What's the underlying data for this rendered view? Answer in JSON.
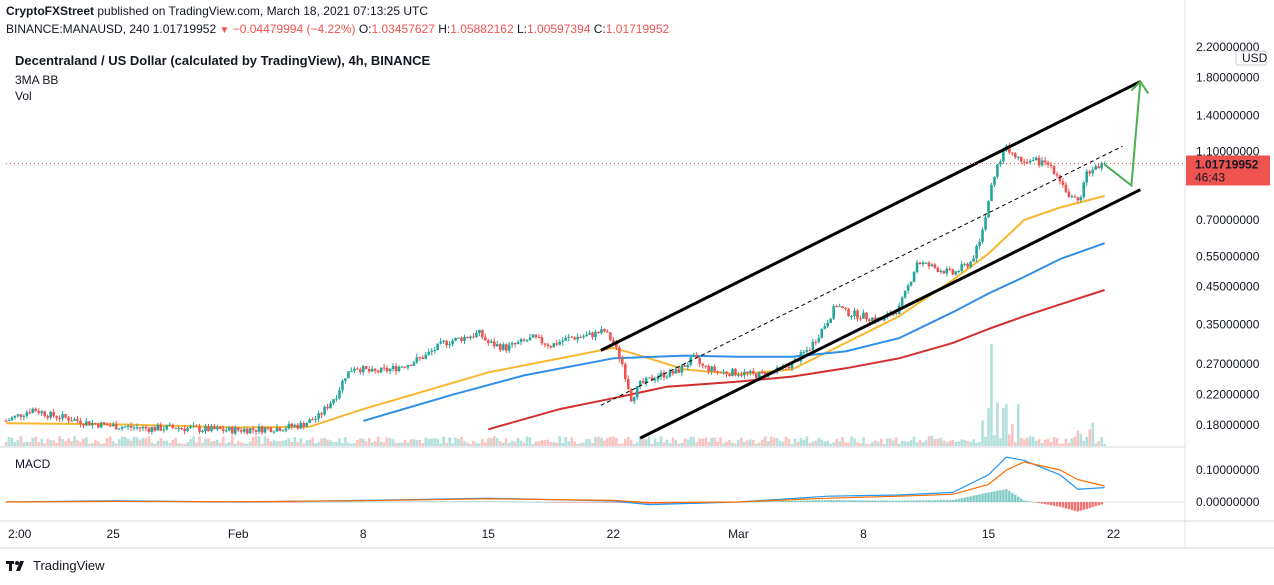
{
  "header": {
    "author": "CryptoFXStreet",
    "published": "published on TradingView.com, March 18, 2021 07:13:25 UTC",
    "symbol": "BINANCE:MANAUSD, 240",
    "last": "1.01719952",
    "change": "−0.04479994 (−4.22%)",
    "o_label": "O:",
    "o_value": "1.03457627",
    "h_label": "H:",
    "h_value": "1.05882162",
    "l_label": "L:",
    "l_value": "1.00597394",
    "c_label": "C:",
    "c_value": "1.01719952"
  },
  "legend": {
    "title": "Decentraland / US Dollar (calculated by TradingView), 4h, BINANCE",
    "indicator1": "3MA BB",
    "indicator2": "Vol",
    "macd": "MACD"
  },
  "price_tag": {
    "value": "1.01719952",
    "countdown": "46:43",
    "currency": "USD"
  },
  "footer": {
    "brand": "TradingView"
  },
  "colors": {
    "up": "#26a69a",
    "down": "#ef5350",
    "ma_fast": "#f7b731",
    "ma_mid": "#2f8fe6",
    "ma_slow": "#d32f2f",
    "arrow": "#4caf50",
    "macd": "#2196f3",
    "signal": "#ff6d00"
  },
  "chart_data": {
    "type": "candlestick",
    "title": "Decentraland / US Dollar (calculated by TradingView), 4h, BINANCE",
    "y_scale": "log",
    "y_ticks": [
      2.2,
      1.8,
      1.4,
      1.1,
      0.7,
      0.55,
      0.45,
      0.35,
      0.27,
      0.22,
      0.18
    ],
    "y_tick_labels": [
      "2.20000000",
      "1.80000000",
      "1.40000000",
      "1.10000000",
      "0.70000000",
      "0.55000000",
      "0.45000000",
      "0.35000000",
      "0.27000000",
      "0.22000000",
      "0.18000000"
    ],
    "x_tick_labels": [
      "2:00",
      "25",
      "Feb",
      "8",
      "15",
      "22",
      "Mar",
      "8",
      "15",
      "22"
    ],
    "x_tick_days": [
      19.08,
      25,
      32,
      39,
      46,
      53,
      60,
      67,
      74,
      81
    ],
    "x_range_days": [
      19,
      85
    ],
    "last_price": 1.01719952,
    "price_path": [
      [
        19.0,
        0.185
      ],
      [
        20.5,
        0.2
      ],
      [
        21.5,
        0.192
      ],
      [
        22.5,
        0.188
      ],
      [
        23.5,
        0.183
      ],
      [
        24.5,
        0.18
      ],
      [
        25.5,
        0.178
      ],
      [
        27.0,
        0.176
      ],
      [
        28.5,
        0.177
      ],
      [
        30.0,
        0.175
      ],
      [
        31.5,
        0.174
      ],
      [
        33.0,
        0.175
      ],
      [
        34.5,
        0.177
      ],
      [
        35.5,
        0.18
      ],
      [
        36.5,
        0.19
      ],
      [
        37.5,
        0.22
      ],
      [
        38.0,
        0.25
      ],
      [
        38.5,
        0.265
      ],
      [
        39.5,
        0.255
      ],
      [
        40.5,
        0.26
      ],
      [
        41.5,
        0.27
      ],
      [
        42.5,
        0.285
      ],
      [
        43.5,
        0.31
      ],
      [
        44.5,
        0.32
      ],
      [
        45.5,
        0.33
      ],
      [
        46.0,
        0.31
      ],
      [
        47.0,
        0.3
      ],
      [
        48.5,
        0.32
      ],
      [
        49.5,
        0.305
      ],
      [
        50.5,
        0.32
      ],
      [
        51.5,
        0.325
      ],
      [
        52.5,
        0.335
      ],
      [
        53.0,
        0.31
      ],
      [
        53.5,
        0.27
      ],
      [
        54.0,
        0.215
      ],
      [
        54.5,
        0.235
      ],
      [
        55.5,
        0.25
      ],
      [
        56.5,
        0.255
      ],
      [
        57.5,
        0.28
      ],
      [
        58.0,
        0.265
      ],
      [
        59.0,
        0.255
      ],
      [
        60.0,
        0.255
      ],
      [
        61.0,
        0.25
      ],
      [
        62.0,
        0.255
      ],
      [
        63.0,
        0.27
      ],
      [
        64.0,
        0.3
      ],
      [
        65.0,
        0.36
      ],
      [
        65.5,
        0.4
      ],
      [
        66.0,
        0.38
      ],
      [
        67.0,
        0.37
      ],
      [
        68.0,
        0.36
      ],
      [
        69.0,
        0.39
      ],
      [
        69.5,
        0.45
      ],
      [
        70.0,
        0.53
      ],
      [
        71.0,
        0.51
      ],
      [
        72.0,
        0.49
      ],
      [
        73.0,
        0.53
      ],
      [
        73.5,
        0.6
      ],
      [
        74.0,
        0.8
      ],
      [
        74.5,
        1.0
      ],
      [
        75.0,
        1.15
      ],
      [
        75.5,
        1.06
      ],
      [
        76.5,
        1.04
      ],
      [
        77.5,
        1.0
      ],
      [
        78.0,
        0.92
      ],
      [
        78.5,
        0.82
      ],
      [
        79.0,
        0.78
      ],
      [
        79.5,
        0.95
      ],
      [
        80.0,
        1.0
      ],
      [
        80.5,
        1.017
      ]
    ],
    "series": [
      {
        "name": "",
        "values": [
          [
            19,
            0.182
          ],
          [
            25,
            0.181
          ],
          [
            32,
            0.177
          ],
          [
            36,
            0.178
          ],
          [
            39,
            0.2
          ],
          [
            46,
            0.255
          ],
          [
            53,
            0.3
          ],
          [
            54.5,
            0.285
          ],
          [
            57,
            0.26
          ],
          [
            60,
            0.252
          ],
          [
            63,
            0.26
          ],
          [
            66,
            0.31
          ],
          [
            69,
            0.37
          ],
          [
            72,
            0.47
          ],
          [
            74,
            0.56
          ],
          [
            76,
            0.7
          ],
          [
            78,
            0.76
          ],
          [
            80.5,
            0.82
          ]
        ]
      },
      {
        "name": "",
        "values": [
          [
            39,
            0.185
          ],
          [
            44,
            0.22
          ],
          [
            48,
            0.25
          ],
          [
            53,
            0.28
          ],
          [
            57,
            0.285
          ],
          [
            60,
            0.283
          ],
          [
            63,
            0.283
          ],
          [
            66,
            0.293
          ],
          [
            69,
            0.32
          ],
          [
            72,
            0.38
          ],
          [
            74,
            0.43
          ],
          [
            76,
            0.48
          ],
          [
            78,
            0.54
          ],
          [
            80.5,
            0.6
          ]
        ]
      },
      {
        "name": "",
        "values": [
          [
            46,
            0.175
          ],
          [
            50,
            0.2
          ],
          [
            53,
            0.215
          ],
          [
            56,
            0.232
          ],
          [
            60,
            0.24
          ],
          [
            63,
            0.248
          ],
          [
            66,
            0.262
          ],
          [
            69,
            0.28
          ],
          [
            72,
            0.31
          ],
          [
            74,
            0.34
          ],
          [
            76,
            0.37
          ],
          [
            78,
            0.4
          ],
          [
            80.5,
            0.44
          ]
        ]
      }
    ],
    "channel_upper": [
      [
        52.3,
        0.295
      ],
      [
        82.5,
        1.75
      ]
    ],
    "channel_lower": [
      [
        54.5,
        0.165
      ],
      [
        82.5,
        0.855
      ]
    ],
    "channel_mid": [
      [
        52.3,
        0.205
      ],
      [
        81.5,
        1.14
      ]
    ],
    "projection_arrow": [
      [
        80.5,
        1.01
      ],
      [
        82.0,
        0.88
      ],
      [
        82.5,
        1.75
      ]
    ],
    "macd_ticks": [
      0.1,
      0.0
    ],
    "macd_tick_labels": [
      "0.10000000",
      "0.00000000"
    ],
    "macd_series": [
      {
        "name": "",
        "values": [
          [
            19,
            0.0
          ],
          [
            25,
            0.004
          ],
          [
            32,
            0.0
          ],
          [
            39,
            0.005
          ],
          [
            46,
            0.012
          ],
          [
            53,
            0.003
          ],
          [
            55,
            -0.008
          ],
          [
            60,
            0.0
          ],
          [
            65,
            0.018
          ],
          [
            69,
            0.022
          ],
          [
            72,
            0.03
          ],
          [
            74,
            0.085
          ],
          [
            75,
            0.14
          ],
          [
            76,
            0.13
          ],
          [
            78,
            0.085
          ],
          [
            79,
            0.04
          ],
          [
            80.5,
            0.045
          ]
        ]
      },
      {
        "name": "",
        "values": [
          [
            19,
            0.0
          ],
          [
            25,
            0.002
          ],
          [
            32,
            0.001
          ],
          [
            39,
            0.004
          ],
          [
            46,
            0.01
          ],
          [
            53,
            0.005
          ],
          [
            55,
            -0.002
          ],
          [
            60,
            0.0
          ],
          [
            65,
            0.012
          ],
          [
            69,
            0.018
          ],
          [
            72,
            0.024
          ],
          [
            74,
            0.055
          ],
          [
            75,
            0.1
          ],
          [
            76,
            0.125
          ],
          [
            78,
            0.1
          ],
          [
            79,
            0.07
          ],
          [
            80.5,
            0.05
          ]
        ]
      }
    ]
  }
}
